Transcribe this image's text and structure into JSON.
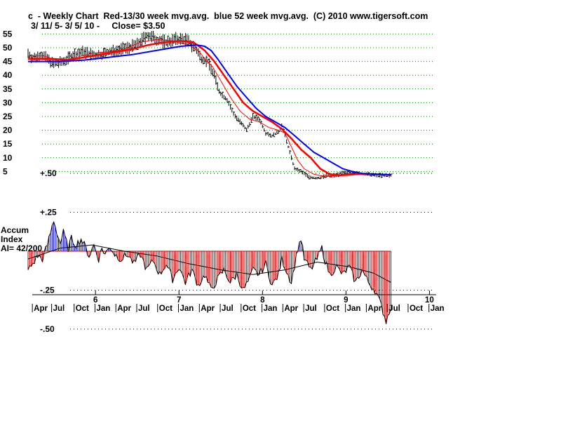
{
  "header": {
    "line1": "c  - Weekly Chart  Red-13/30 week mvg.avg.  blue 52 week mvg.avg.  (C) 2010 www.tigersoft.com",
    "line2": "3/ 11/ 5- 3/ 5/ 10 -     Close= $3.50"
  },
  "chart_data": {
    "type": "line",
    "title": "c  - Weekly Chart  Red-13/30 week mvg.avg.  blue 52 week mvg.avg.  (C) 2010 www.tigersoft.com",
    "subtitle": "3/ 11/ 5- 3/ 5/ 10 -     Close= $3.50",
    "x_unit": "weeks since Mar 11 2005",
    "price_panel": {
      "ylim": [
        0,
        57
      ],
      "y_ticks": [
        "5",
        "10",
        "15",
        "20",
        "25",
        "30",
        "35",
        "40",
        "45",
        "50",
        "55"
      ],
      "y_tick_values": [
        5,
        10,
        15,
        20,
        25,
        30,
        35,
        40,
        45,
        50,
        55
      ],
      "grid": "dotted",
      "price_anchor_points": [
        [
          0,
          48
        ],
        [
          3,
          46
        ],
        [
          8,
          47.5
        ],
        [
          12,
          46
        ],
        [
          16,
          44
        ],
        [
          22,
          45
        ],
        [
          28,
          47.5
        ],
        [
          35,
          48.5
        ],
        [
          42,
          47
        ],
        [
          48,
          48
        ],
        [
          55,
          49
        ],
        [
          62,
          50
        ],
        [
          68,
          51
        ],
        [
          74,
          54.5
        ],
        [
          80,
          53
        ],
        [
          86,
          52
        ],
        [
          92,
          53
        ],
        [
          98,
          53
        ],
        [
          104,
          50
        ],
        [
          108,
          46
        ],
        [
          112,
          45
        ],
        [
          116,
          40
        ],
        [
          119,
          34
        ],
        [
          124,
          31
        ],
        [
          128,
          26
        ],
        [
          132,
          23
        ],
        [
          136,
          20
        ],
        [
          140,
          25
        ],
        [
          144,
          24
        ],
        [
          148,
          19
        ],
        [
          152,
          18
        ],
        [
          156,
          19.5
        ],
        [
          158,
          22
        ],
        [
          160,
          18
        ],
        [
          163,
          12
        ],
        [
          166,
          6
        ],
        [
          170,
          5
        ],
        [
          175,
          3
        ],
        [
          180,
          2.5
        ],
        [
          186,
          3.5
        ],
        [
          190,
          3.5
        ],
        [
          196,
          4.5
        ],
        [
          202,
          4.5
        ],
        [
          210,
          4
        ],
        [
          220,
          3.5
        ],
        [
          226,
          3.5
        ]
      ],
      "series": [
        {
          "name": "13 week mvg.avg.",
          "color": "#ff0000",
          "points": [
            [
              0,
              47
            ],
            [
              10,
              47
            ],
            [
              20,
              45
            ],
            [
              30,
              46.5
            ],
            [
              40,
              48
            ],
            [
              50,
              48.5
            ],
            [
              60,
              49.5
            ],
            [
              70,
              52
            ],
            [
              80,
              53
            ],
            [
              90,
              52.5
            ],
            [
              100,
              51
            ],
            [
              106,
              49
            ],
            [
              110,
              46
            ],
            [
              115,
              43
            ],
            [
              120,
              38
            ],
            [
              126,
              32
            ],
            [
              132,
              27
            ],
            [
              138,
              24
            ],
            [
              144,
              23
            ],
            [
              150,
              21
            ],
            [
              156,
              20
            ],
            [
              160,
              19
            ],
            [
              164,
              14
            ],
            [
              168,
              9
            ],
            [
              172,
              6
            ],
            [
              178,
              4
            ],
            [
              184,
              3.3
            ],
            [
              192,
              3.5
            ],
            [
              200,
              4.3
            ],
            [
              210,
              4.2
            ],
            [
              226,
              3.6
            ]
          ]
        },
        {
          "name": "30 week mvg.avg.",
          "color": "#ff0000",
          "points": [
            [
              0,
              46
            ],
            [
              15,
              46
            ],
            [
              25,
              45.5
            ],
            [
              35,
              46.5
            ],
            [
              45,
              47.5
            ],
            [
              55,
              48.5
            ],
            [
              65,
              49.5
            ],
            [
              75,
              51
            ],
            [
              85,
              52
            ],
            [
              95,
              52.5
            ],
            [
              103,
              52
            ],
            [
              110,
              49
            ],
            [
              116,
              45
            ],
            [
              122,
              40
            ],
            [
              128,
              35
            ],
            [
              134,
              30
            ],
            [
              140,
              27
            ],
            [
              146,
              25
            ],
            [
              152,
              23
            ],
            [
              158,
              20.5
            ],
            [
              164,
              17
            ],
            [
              170,
              13
            ],
            [
              176,
              10
            ],
            [
              182,
              6
            ],
            [
              188,
              4
            ],
            [
              194,
              3.6
            ],
            [
              200,
              3.8
            ],
            [
              206,
              4.1
            ],
            [
              214,
              4
            ],
            [
              226,
              3.8
            ]
          ]
        },
        {
          "name": "52 week mvg.avg.",
          "color": "#0000ff",
          "points": [
            [
              0,
              45
            ],
            [
              20,
              45
            ],
            [
              35,
              45.5
            ],
            [
              50,
              46.5
            ],
            [
              65,
              47.5
            ],
            [
              80,
              49
            ],
            [
              95,
              50.5
            ],
            [
              105,
              51
            ],
            [
              110,
              50.5
            ],
            [
              114,
              49
            ],
            [
              118,
              46
            ],
            [
              124,
              41
            ],
            [
              130,
              36
            ],
            [
              136,
              32
            ],
            [
              142,
              28
            ],
            [
              148,
              25
            ],
            [
              154,
              23
            ],
            [
              160,
              21
            ],
            [
              166,
              18
            ],
            [
              172,
              15
            ],
            [
              178,
              12
            ],
            [
              184,
              10
            ],
            [
              190,
              8
            ],
            [
              196,
              6
            ],
            [
              202,
              5
            ],
            [
              208,
              4.3
            ],
            [
              216,
              4
            ],
            [
              226,
              3.8
            ]
          ]
        }
      ]
    },
    "accum_panel": {
      "label_line1": "Accum",
      "label_line2": "Index",
      "ai_text": "AI= 42/200",
      "ylim": [
        -0.55,
        0.55
      ],
      "y_ticks": [
        "+.50",
        "+.25",
        "-.25",
        "-.50"
      ],
      "y_tick_values": [
        0.5,
        0.25,
        -0.25,
        -0.5
      ],
      "positive_color": "#0000c0",
      "negative_color": "#c00000",
      "ai_anchor_points": [
        [
          0,
          -0.12
        ],
        [
          3,
          -0.08
        ],
        [
          6,
          -0.03
        ],
        [
          9,
          -0.05
        ],
        [
          12,
          0.04
        ],
        [
          14,
          0.12
        ],
        [
          16,
          0.2
        ],
        [
          18,
          0.12
        ],
        [
          20,
          0.05
        ],
        [
          22,
          0.12
        ],
        [
          25,
          0.02
        ],
        [
          27,
          0.08
        ],
        [
          30,
          0.04
        ],
        [
          33,
          0.08
        ],
        [
          36,
          0.02
        ],
        [
          38,
          -0.03
        ],
        [
          41,
          0.04
        ],
        [
          44,
          -0.05
        ],
        [
          46,
          0.02
        ],
        [
          48,
          -0.02
        ],
        [
          51,
          0.03
        ],
        [
          54,
          -0.02
        ],
        [
          58,
          -0.05
        ],
        [
          62,
          -0.02
        ],
        [
          66,
          -0.08
        ],
        [
          70,
          -0.02
        ],
        [
          74,
          -0.12
        ],
        [
          78,
          -0.06
        ],
        [
          82,
          -0.15
        ],
        [
          86,
          -0.08
        ],
        [
          90,
          -0.18
        ],
        [
          94,
          -0.1
        ],
        [
          98,
          -0.2
        ],
        [
          102,
          -0.12
        ],
        [
          106,
          -0.22
        ],
        [
          110,
          -0.15
        ],
        [
          114,
          -0.25
        ],
        [
          118,
          -0.18
        ],
        [
          122,
          -0.12
        ],
        [
          126,
          -0.2
        ],
        [
          130,
          -0.15
        ],
        [
          134,
          -0.25
        ],
        [
          138,
          -0.18
        ],
        [
          140,
          -0.12
        ],
        [
          144,
          -0.15
        ],
        [
          148,
          -0.08
        ],
        [
          152,
          -0.22
        ],
        [
          156,
          -0.15
        ],
        [
          158,
          -0.05
        ],
        [
          160,
          -0.1
        ],
        [
          164,
          -0.2
        ],
        [
          168,
          0.02
        ],
        [
          170,
          0.08
        ],
        [
          172,
          -0.05
        ],
        [
          176,
          -0.12
        ],
        [
          180,
          -0.05
        ],
        [
          183,
          0.02
        ],
        [
          185,
          -0.06
        ],
        [
          188,
          -0.15
        ],
        [
          192,
          -0.1
        ],
        [
          196,
          -0.15
        ],
        [
          200,
          -0.1
        ],
        [
          204,
          -0.2
        ],
        [
          208,
          -0.12
        ],
        [
          212,
          -0.2
        ],
        [
          216,
          -0.25
        ],
        [
          220,
          -0.35
        ],
        [
          223,
          -0.45
        ],
        [
          226,
          -0.35
        ]
      ],
      "ai_smooth_points": [
        [
          0,
          -0.05
        ],
        [
          20,
          0.02
        ],
        [
          40,
          0.04
        ],
        [
          60,
          0.0
        ],
        [
          80,
          -0.03
        ],
        [
          100,
          -0.08
        ],
        [
          120,
          -0.12
        ],
        [
          140,
          -0.15
        ],
        [
          160,
          -0.12
        ],
        [
          180,
          -0.07
        ],
        [
          200,
          -0.1
        ],
        [
          215,
          -0.14
        ],
        [
          226,
          -0.2
        ]
      ]
    },
    "x_axis": {
      "year_labels": [
        "6",
        "7",
        "8",
        "9",
        "10"
      ],
      "year_label_weeks": [
        42,
        94,
        146,
        198,
        250
      ],
      "month_labels": [
        "Apr",
        "Jul",
        "Oct",
        "Jan",
        "Apr",
        "Jul",
        "Oct",
        "Jan",
        "Apr",
        "Jul",
        "Oct",
        "Jan",
        "Apr",
        "Jul",
        "Oct",
        "Jan",
        "Apr",
        "Jul",
        "Oct",
        "Jan"
      ],
      "month_label_weeks": [
        4,
        16,
        30,
        43,
        56,
        69,
        82,
        95,
        108,
        121,
        134,
        147,
        160,
        173,
        186,
        199,
        212,
        225,
        238,
        251
      ]
    }
  }
}
